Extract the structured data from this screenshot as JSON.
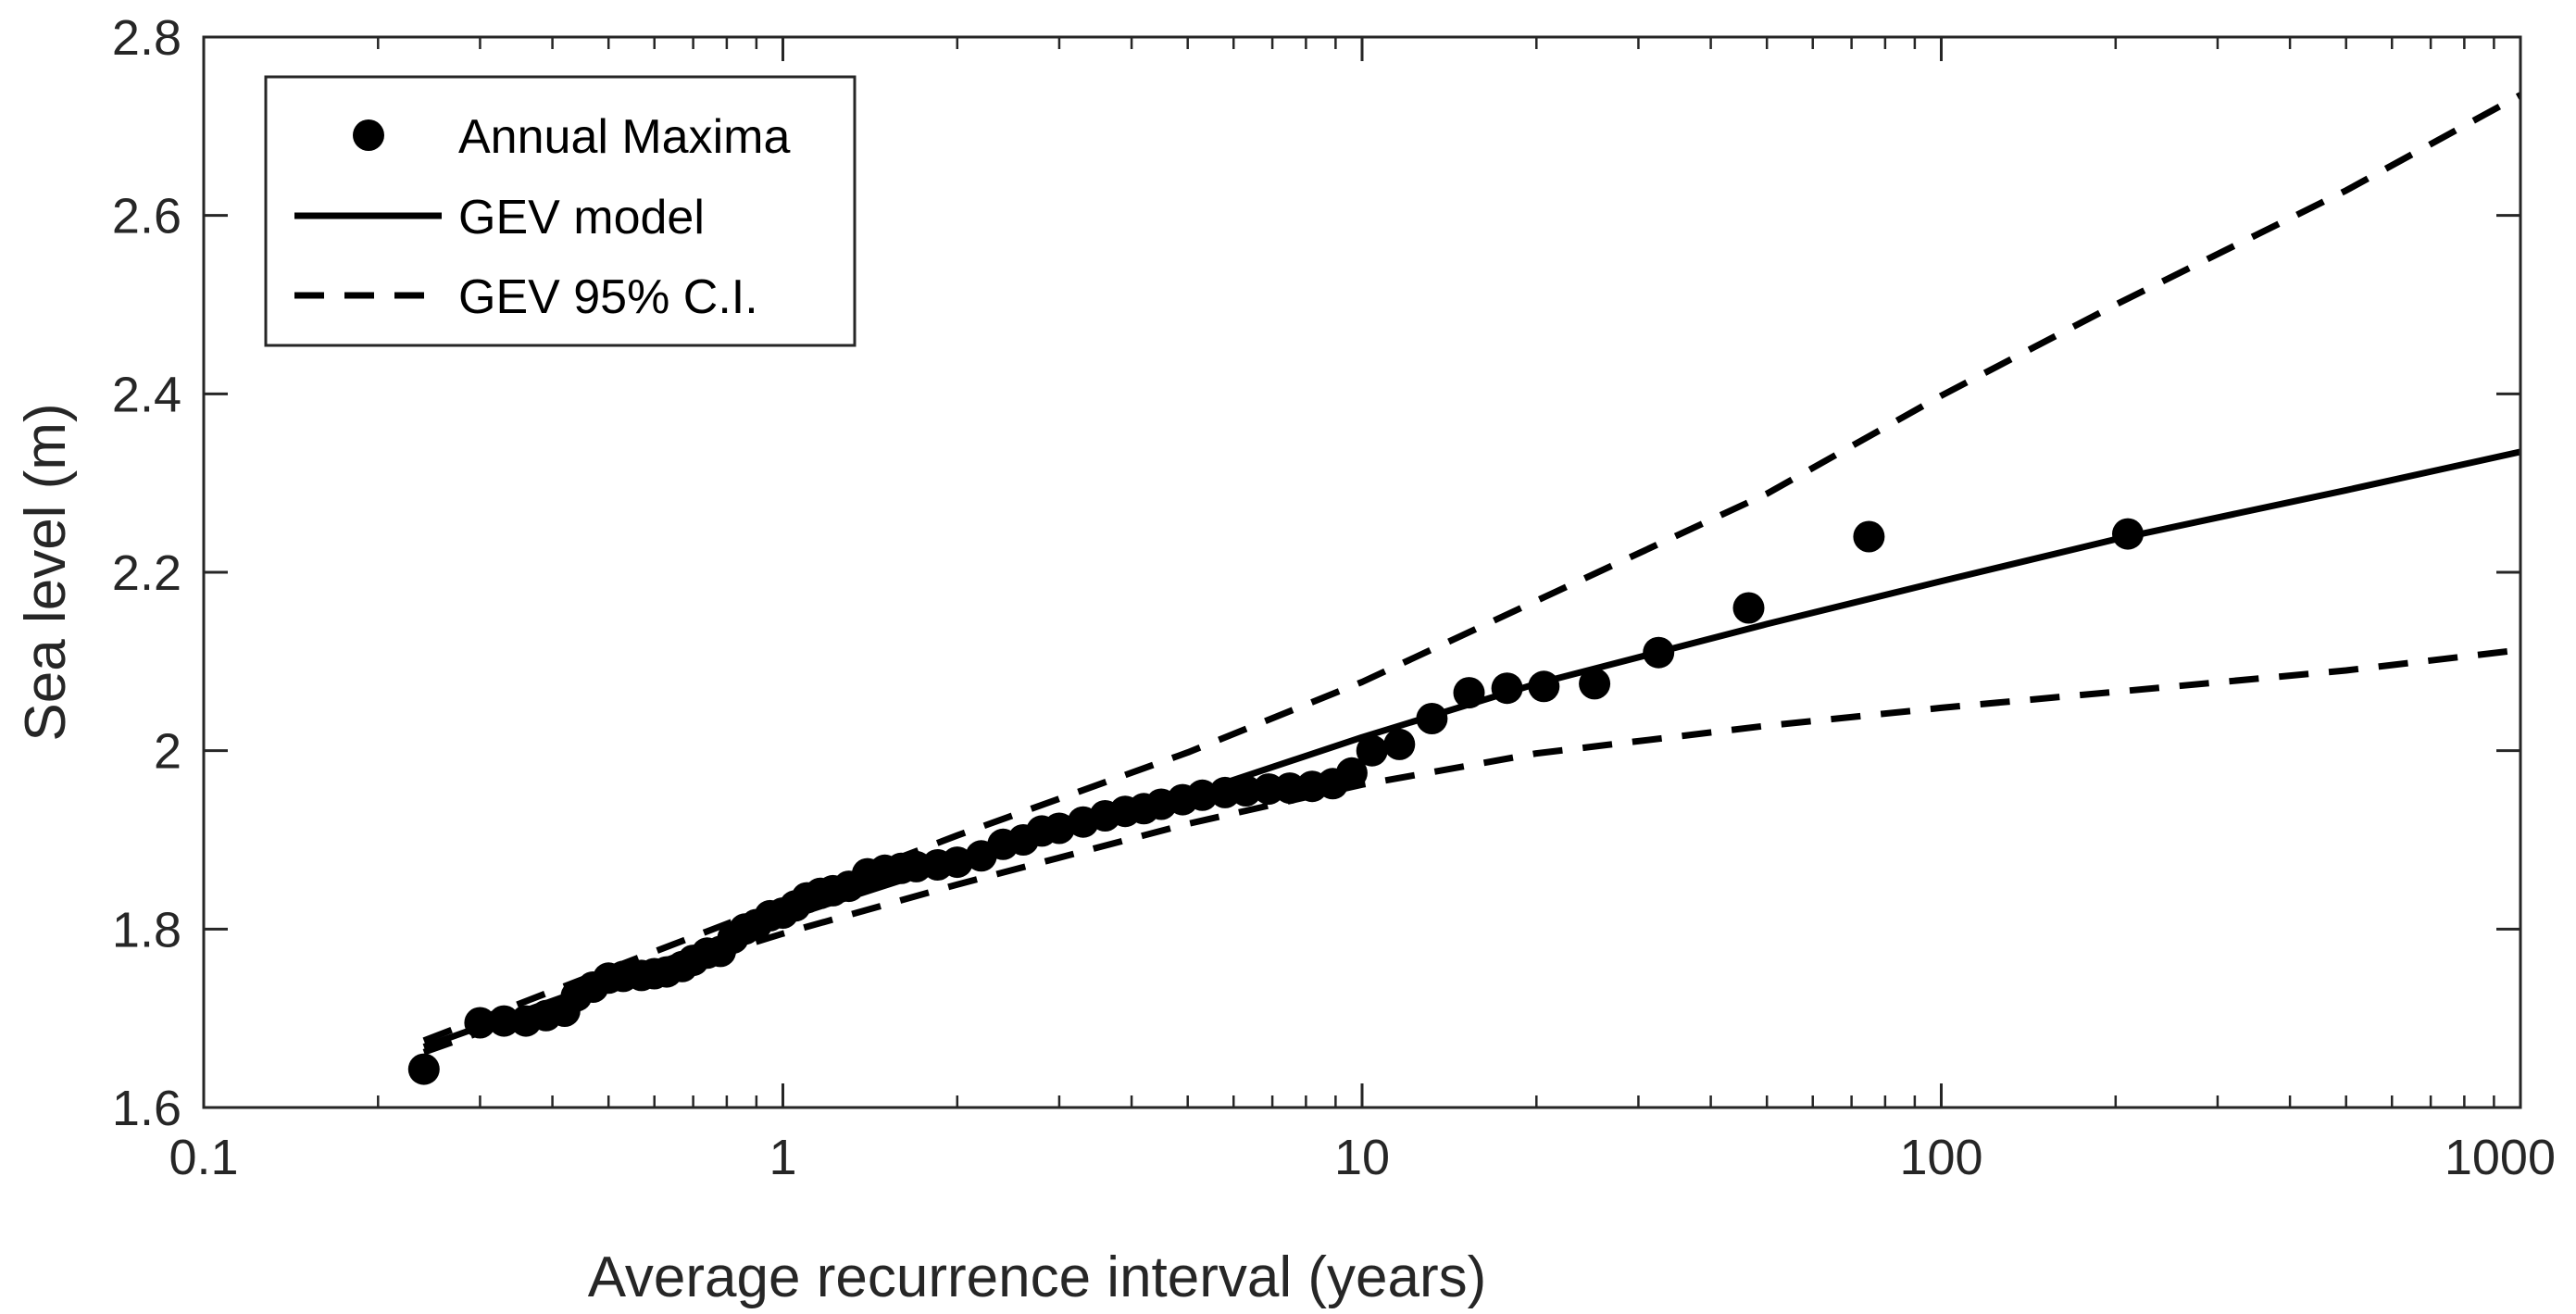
{
  "chart_data": {
    "type": "scatter",
    "title": "",
    "xlabel": "Average recurrence interval (years)",
    "ylabel": "Sea level (m)",
    "xscale": "log",
    "xlim": [
      0.1,
      1000
    ],
    "ylim": [
      1.6,
      2.8
    ],
    "xticks": [
      0.1,
      1,
      10,
      100,
      1000
    ],
    "xtick_labels": [
      "0.1",
      "1",
      "10",
      "100",
      "1000"
    ],
    "yticks": [
      1.6,
      1.8,
      2.0,
      2.2,
      2.4,
      2.6,
      2.8
    ],
    "ytick_labels": [
      "1.6",
      "1.8",
      "2",
      "2.2",
      "2.4",
      "2.6",
      "2.8"
    ],
    "grid": false,
    "legend_position": "top-left",
    "legend": [
      "Annual Maxima",
      "GEV model",
      "GEV 95% C.I."
    ],
    "series": [
      {
        "name": "Annual Maxima",
        "kind": "scatter",
        "x": [
          0.24,
          0.3,
          0.33,
          0.36,
          0.39,
          0.42,
          0.44,
          0.47,
          0.5,
          0.53,
          0.57,
          0.6,
          0.63,
          0.67,
          0.7,
          0.74,
          0.78,
          0.82,
          0.86,
          0.9,
          0.95,
          1.0,
          1.05,
          1.1,
          1.16,
          1.22,
          1.3,
          1.4,
          1.5,
          1.6,
          1.7,
          1.85,
          2.0,
          2.2,
          2.4,
          2.6,
          2.8,
          3.0,
          3.3,
          3.6,
          3.9,
          4.2,
          4.5,
          4.9,
          5.3,
          5.8,
          6.3,
          6.9,
          7.5,
          8.2,
          8.9,
          9.6,
          10.4,
          11.6,
          13.2,
          15.3,
          17.8,
          20.6,
          25.2,
          32.5,
          46.5,
          75.0,
          210.0
        ],
        "y": [
          1.643,
          1.695,
          1.697,
          1.697,
          1.703,
          1.708,
          1.725,
          1.735,
          1.745,
          1.747,
          1.748,
          1.75,
          1.752,
          1.758,
          1.765,
          1.773,
          1.775,
          1.79,
          1.8,
          1.805,
          1.815,
          1.818,
          1.826,
          1.835,
          1.84,
          1.843,
          1.848,
          1.862,
          1.866,
          1.868,
          1.87,
          1.872,
          1.875,
          1.882,
          1.895,
          1.9,
          1.91,
          1.913,
          1.92,
          1.927,
          1.932,
          1.935,
          1.94,
          1.945,
          1.95,
          1.953,
          1.955,
          1.957,
          1.958,
          1.96,
          1.963,
          1.975,
          2.0,
          2.007,
          2.036,
          2.065,
          2.07,
          2.072,
          2.075,
          2.11,
          2.16,
          2.24,
          2.243
        ]
      },
      {
        "name": "GEV model",
        "kind": "line",
        "style": "solid",
        "x": [
          0.24,
          0.5,
          1,
          2,
          5,
          10,
          20,
          50,
          100,
          200,
          500,
          1000
        ],
        "y": [
          1.668,
          1.742,
          1.812,
          1.875,
          1.95,
          2.015,
          2.075,
          2.142,
          2.19,
          2.237,
          2.292,
          2.335
        ]
      },
      {
        "name": "GEV 95% C.I. upper",
        "kind": "line",
        "style": "dashed",
        "x": [
          0.24,
          0.5,
          1,
          2,
          5,
          10,
          20,
          50,
          100,
          200,
          500,
          1000
        ],
        "y": [
          1.675,
          1.755,
          1.83,
          1.905,
          1.998,
          2.077,
          2.168,
          2.288,
          2.398,
          2.5,
          2.628,
          2.735
        ]
      },
      {
        "name": "GEV 95% C.I. lower",
        "kind": "line",
        "style": "dashed",
        "x": [
          0.24,
          0.5,
          1,
          2,
          5,
          10,
          20,
          50,
          100,
          200,
          500,
          1000
        ],
        "y": [
          1.662,
          1.735,
          1.795,
          1.85,
          1.918,
          1.962,
          1.997,
          2.028,
          2.048,
          2.066,
          2.09,
          2.113
        ]
      }
    ]
  }
}
